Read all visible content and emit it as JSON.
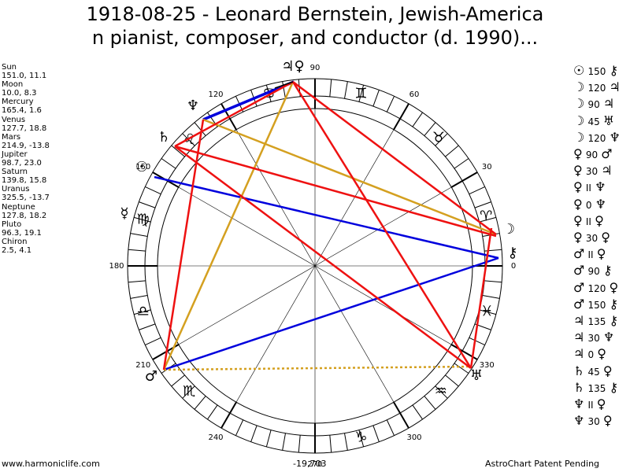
{
  "title": [
    "1918-08-25 - Leonard Bernstein, Jewish-America",
    "n pianist, composer, and conductor (d. 1990)..."
  ],
  "planets": [
    {
      "name": "Sun",
      "coords": "151.0, 11.1"
    },
    {
      "name": "Moon",
      "coords": "10.0, 8.3"
    },
    {
      "name": "Mercury",
      "coords": "165.4, 1.6"
    },
    {
      "name": "Venus",
      "coords": "127.7, 18.8"
    },
    {
      "name": "Mars",
      "coords": "214.9, -13.8"
    },
    {
      "name": "Jupiter",
      "coords": "98.7, 23.0"
    },
    {
      "name": "Saturn",
      "coords": "139.8, 15.8"
    },
    {
      "name": "Uranus",
      "coords": "325.5, -13.7"
    },
    {
      "name": "Neptune",
      "coords": "127.8, 18.2"
    },
    {
      "name": "Pluto",
      "coords": "96.3, 19.1"
    },
    {
      "name": "Chiron",
      "coords": "2.5, 4.1"
    }
  ],
  "aspects": [
    [
      "☉",
      "150",
      "⚷"
    ],
    [
      "☽",
      "120",
      "♃"
    ],
    [
      "☽",
      "90",
      "♃"
    ],
    [
      "☽",
      "45",
      "♅"
    ],
    [
      "☽",
      "120",
      "♆"
    ],
    [
      "♀",
      "90",
      "♂"
    ],
    [
      "♀",
      "30",
      "♃"
    ],
    [
      "♀",
      "II",
      "♆"
    ],
    [
      "♀",
      "0",
      "♆"
    ],
    [
      "♀",
      "II",
      "♀"
    ],
    [
      "♀",
      "30",
      "♀"
    ],
    [
      "♂",
      "II",
      "♀"
    ],
    [
      "♂",
      "90",
      "⚷"
    ],
    [
      "♂",
      "120",
      "♀"
    ],
    [
      "♂",
      "150",
      "⚷"
    ],
    [
      "♃",
      "135",
      "⚷"
    ],
    [
      "♃",
      "30",
      "♆"
    ],
    [
      "♃",
      "0",
      "♀"
    ],
    [
      "♄",
      "45",
      "♀"
    ],
    [
      "♄",
      "135",
      "⚷"
    ],
    [
      "♆",
      "II",
      "♀"
    ],
    [
      "♆",
      "30",
      "♀"
    ]
  ],
  "degree_labels": [
    "0",
    "30",
    "60",
    "90",
    "120",
    "150",
    "180",
    "210",
    "240",
    "270",
    "300",
    "330"
  ],
  "zodiac": [
    "♈",
    "♉",
    "♊",
    "♋",
    "♌",
    "♍",
    "♎",
    "♏",
    "♑",
    "♒",
    "♓"
  ],
  "planet_glyphs": [
    "♃♀",
    "♆",
    "♄",
    "☉",
    "☿",
    "☽",
    "⚷",
    "♂",
    "♅"
  ],
  "footer": {
    "site": "www.harmoniclife.com",
    "score": "-19,703",
    "notice": "AstroChart Patent Pending"
  }
}
